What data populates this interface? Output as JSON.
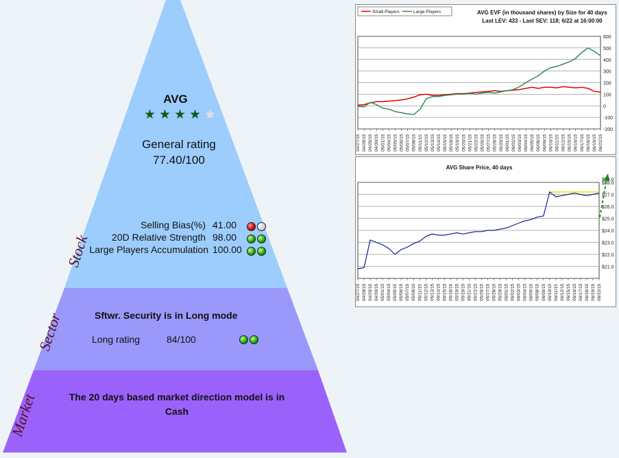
{
  "stock": {
    "ticker": "AVG",
    "stars_filled": 4,
    "stars_total": 5,
    "general_rating_label": "General rating",
    "general_rating_value": "77.40/100",
    "layer_label": "Stock",
    "metrics": [
      {
        "label": "Selling Bias(%)",
        "value": "41.00",
        "dots": [
          "red",
          "grey"
        ]
      },
      {
        "label": "20D Relative Strength",
        "value": "98.00",
        "dots": [
          "green",
          "green"
        ]
      },
      {
        "label": "Large Players Accumulation",
        "value": "100.00",
        "dots": [
          "green",
          "green"
        ]
      }
    ]
  },
  "sector": {
    "layer_label": "Sector",
    "title": "Sftwr. Security is in Long mode",
    "rating_label": "Long rating",
    "rating_value": "84/100",
    "dots": [
      "green",
      "green"
    ]
  },
  "market": {
    "layer_label": "Market",
    "line1": "The 20 days based market direction model is in",
    "line2": "Cash"
  },
  "colors": {
    "stock_fill": "#9ccdfd",
    "sector_fill": "#9a98fb",
    "market_fill": "#9a62fb",
    "small_players": "#e00000",
    "large_players": "#2e8b57",
    "price_line": "#0b1f8a",
    "resistance": "#f0e000"
  },
  "chart_data": [
    {
      "type": "line",
      "title": "AVG EVF (in thousand shares) by Size for 40 days",
      "subtitle": "Last LEV: 433 - Last SEV: 118; 6/22 at 16:00:00",
      "legend": [
        "Small Players",
        "Large Players"
      ],
      "legend_position": "top-left",
      "grid": true,
      "ylim": [
        -200,
        600
      ],
      "yticks": [
        "600",
        "500",
        "400",
        "300",
        "200",
        "100",
        "0",
        "-100",
        "-200"
      ],
      "x": [
        "04/27/15",
        "04/28/15",
        "04/29/15",
        "04/30/15",
        "05/01/15",
        "05/04/15",
        "05/05/15",
        "05/06/15",
        "05/07/15",
        "05/08/15",
        "05/11/15",
        "05/12/15",
        "05/13/15",
        "05/14/15",
        "05/15/15",
        "05/18/15",
        "05/19/15",
        "05/20/15",
        "05/21/15",
        "05/22/15",
        "05/26/15",
        "05/27/15",
        "05/28/15",
        "05/29/15",
        "06/01/15",
        "06/02/15",
        "06/03/15",
        "06/04/15",
        "06/05/15",
        "06/08/15",
        "06/09/15",
        "06/10/15",
        "06/11/15",
        "06/12/15",
        "06/15/15",
        "06/16/15",
        "06/17/15",
        "06/18/15",
        "06/19/15",
        "06/22/15"
      ],
      "series": [
        {
          "name": "Small Players",
          "values": [
            5,
            10,
            25,
            35,
            35,
            40,
            45,
            50,
            60,
            75,
            95,
            100,
            90,
            90,
            95,
            100,
            105,
            105,
            110,
            115,
            120,
            125,
            130,
            125,
            130,
            135,
            140,
            150,
            160,
            150,
            160,
            160,
            155,
            165,
            160,
            155,
            160,
            150,
            125,
            118
          ]
        },
        {
          "name": "Large Players",
          "values": [
            -5,
            -10,
            30,
            10,
            -20,
            -30,
            -50,
            -60,
            -70,
            -75,
            -30,
            60,
            80,
            80,
            90,
            95,
            100,
            100,
            105,
            100,
            110,
            115,
            110,
            120,
            130,
            140,
            165,
            200,
            230,
            260,
            300,
            330,
            340,
            360,
            380,
            410,
            460,
            500,
            470,
            433
          ]
        }
      ]
    },
    {
      "type": "line",
      "title": "AVG Share Price, 40 days",
      "grid": true,
      "ylim": [
        21,
        29
      ],
      "yticks": [
        "$28.0",
        "$27.0",
        "$26.0",
        "$25.0",
        "$24.0",
        "$23.0",
        "$22.0",
        "$21.0"
      ],
      "ytick_top": "$29.0",
      "x": [
        "04/27/15",
        "04/28/15",
        "04/29/15",
        "04/30/15",
        "05/01/15",
        "05/04/15",
        "05/05/15",
        "05/06/15",
        "05/07/15",
        "05/08/15",
        "05/11/15",
        "05/12/15",
        "05/13/15",
        "05/14/15",
        "05/15/15",
        "05/18/15",
        "05/19/15",
        "05/20/15",
        "05/21/15",
        "05/22/15",
        "05/26/15",
        "05/27/15",
        "05/28/15",
        "05/29/15",
        "06/01/15",
        "06/02/15",
        "06/03/15",
        "06/04/15",
        "06/05/15",
        "06/08/15",
        "06/09/15",
        "06/10/15",
        "06/11/15",
        "06/12/15",
        "06/15/15",
        "06/16/15",
        "06/17/15",
        "06/18/15",
        "06/19/15",
        "06/22/15"
      ],
      "series": [
        {
          "name": "",
          "values": [
            21.8,
            21.9,
            24.2,
            24.0,
            23.8,
            23.5,
            23.0,
            23.4,
            23.6,
            23.9,
            24.1,
            24.5,
            24.7,
            24.6,
            24.6,
            24.7,
            24.8,
            24.7,
            24.8,
            24.9,
            24.9,
            25.0,
            25.0,
            25.1,
            25.2,
            25.4,
            25.6,
            25.8,
            25.9,
            26.1,
            26.2,
            28.2,
            27.8,
            27.9,
            28.0,
            28.1,
            28.0,
            27.9,
            28.0,
            28.1
          ]
        }
      ],
      "resistance": 28.2
    }
  ]
}
